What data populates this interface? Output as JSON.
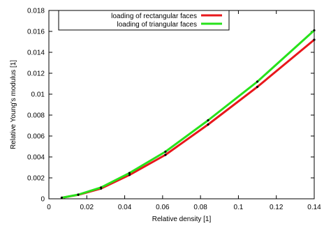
{
  "chart_data": {
    "type": "line",
    "title": "",
    "xlabel": "Relative density [1]",
    "ylabel": "Relative Young's modulus [1]",
    "xlim": [
      0,
      0.14
    ],
    "ylim": [
      0,
      0.018
    ],
    "xticks": [
      0,
      0.02,
      0.04,
      0.06,
      0.08,
      0.1,
      0.12,
      0.14
    ],
    "xtick_labels": [
      "0",
      "0.02",
      "0.04",
      "0.06",
      "0.08",
      "0.1",
      "0.12",
      "0.14"
    ],
    "yticks": [
      0,
      0.002,
      0.004,
      0.006,
      0.008,
      0.01,
      0.012,
      0.014,
      0.016,
      0.018
    ],
    "ytick_labels": [
      "0",
      "0.002",
      "0.004",
      "0.006",
      "0.008",
      "0.01",
      "0.012",
      "0.014",
      "0.016",
      "0.018"
    ],
    "grid": false,
    "legend_position": "top-left",
    "series": [
      {
        "name": "loading of rectangular faces",
        "color": "#e8171b",
        "x": [
          0.0068,
          0.0155,
          0.0275,
          0.0425,
          0.0615,
          0.084,
          0.11,
          0.14
        ],
        "y": [
          0.0001,
          0.00038,
          0.00098,
          0.00228,
          0.0042,
          0.0071,
          0.0107,
          0.0152
        ]
      },
      {
        "name": "loading of triangular faces",
        "color": "#27e21b",
        "x": [
          0.0068,
          0.0155,
          0.0275,
          0.0425,
          0.0615,
          0.084,
          0.11,
          0.14
        ],
        "y": [
          0.0001,
          0.0004,
          0.00108,
          0.00246,
          0.0045,
          0.0075,
          0.0112,
          0.0161
        ]
      }
    ]
  }
}
